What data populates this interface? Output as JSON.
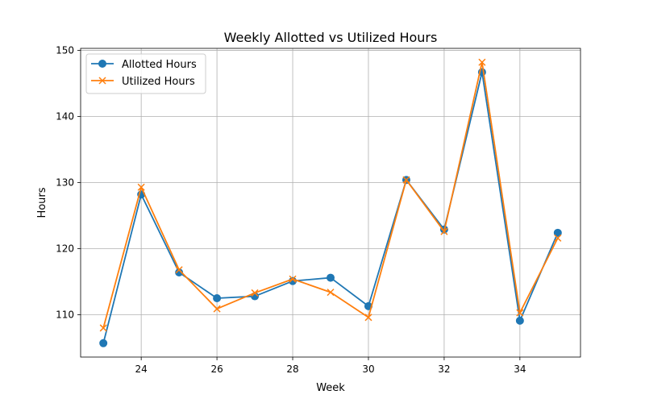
{
  "chart_data": {
    "type": "line",
    "title": "Weekly Allotted vs Utilized Hours",
    "xlabel": "Week",
    "ylabel": "Hours",
    "xlim": [
      22.4,
      35.6
    ],
    "ylim": [
      103.6,
      150.3
    ],
    "xticks": [
      24,
      26,
      28,
      30,
      32,
      34
    ],
    "yticks": [
      110,
      120,
      130,
      140,
      150
    ],
    "grid": true,
    "legend": "upper-left",
    "x": [
      23,
      24,
      25,
      26,
      27,
      28,
      29,
      30,
      31,
      32,
      33,
      34,
      35
    ],
    "series": [
      {
        "name": "Allotted Hours",
        "color": "#1f77b4",
        "marker": "circle",
        "values": [
          105.7,
          128.2,
          116.4,
          112.5,
          112.8,
          115.1,
          115.6,
          111.3,
          130.4,
          122.9,
          146.7,
          109.1,
          122.4
        ]
      },
      {
        "name": "Utilized Hours",
        "color": "#ff7f0e",
        "marker": "x",
        "values": [
          108.0,
          129.3,
          116.8,
          110.9,
          113.3,
          115.4,
          113.4,
          109.6,
          130.4,
          122.6,
          148.2,
          110.3,
          121.6
        ]
      }
    ]
  }
}
